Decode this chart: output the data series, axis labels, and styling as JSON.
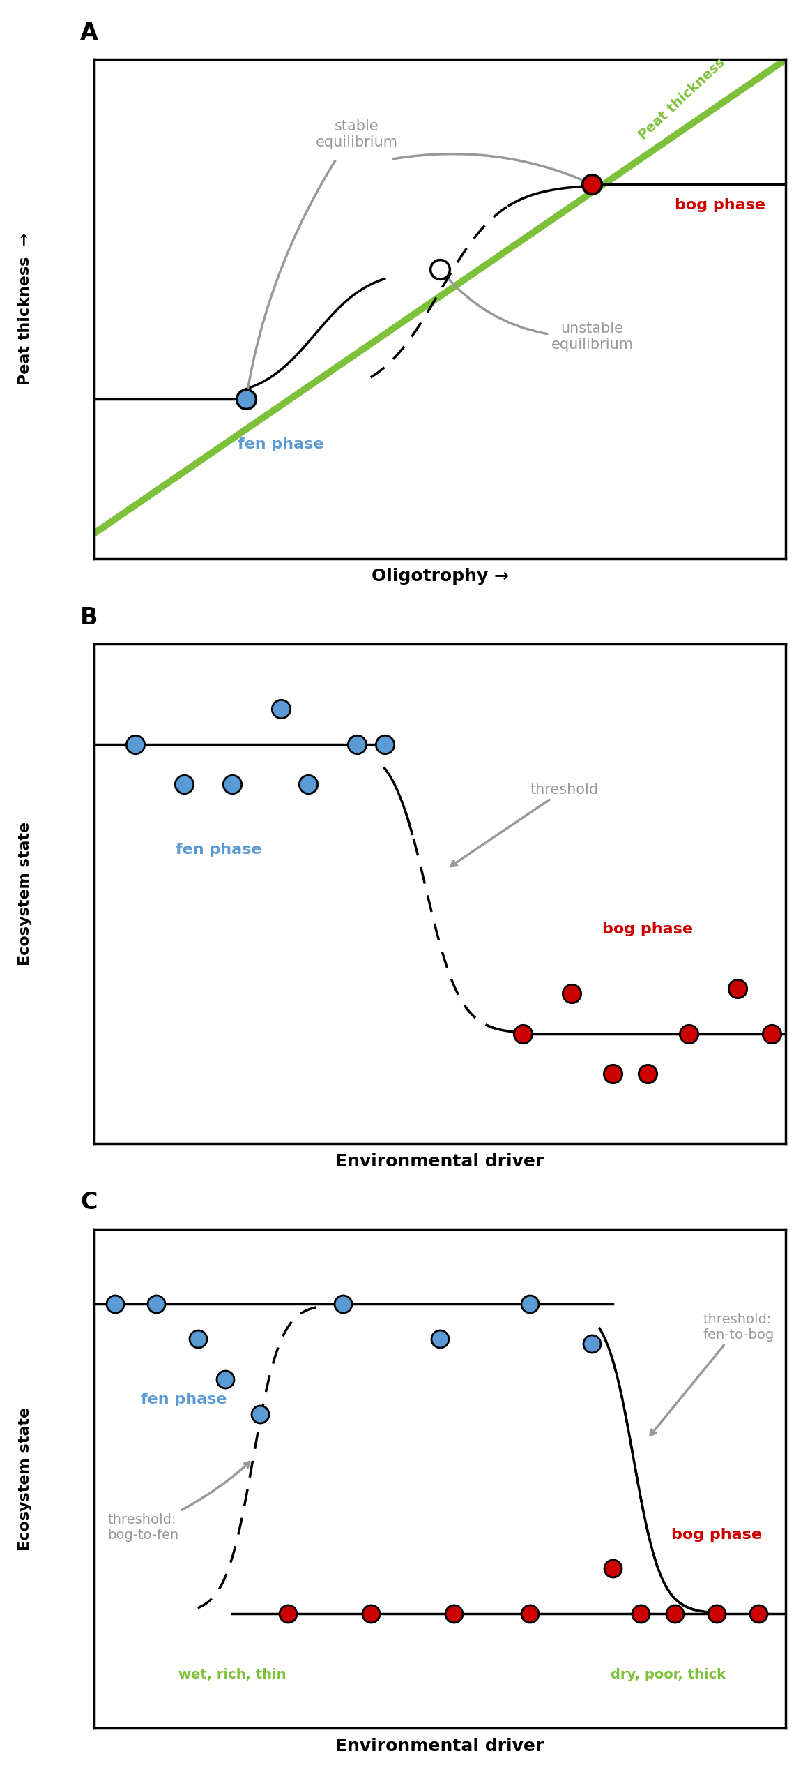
{
  "panel_A": {
    "label": "A",
    "xlabel": "Oligotrophy →",
    "ylabel": "Peat thickness  →",
    "green_line_label": "Peat thickness",
    "fen_phase_label": "fen phase",
    "bog_phase_label": "bog phase",
    "stable_eq_label": "stable\nequilibrium",
    "unstable_eq_label": "unstable\nequilibrium",
    "fen_color": "#5B9BD5",
    "bog_color": "#CC0000",
    "green_color": "#7DC13A",
    "arrow_color": "#999999",
    "text_color": "#999999"
  },
  "panel_B": {
    "label": "B",
    "xlabel": "Environmental driver",
    "ylabel": "Ecosystem state",
    "fen_phase_label": "fen phase",
    "bog_phase_label": "bog phase",
    "threshold_label": "threshold",
    "fen_color": "#5B9BD5",
    "bog_color": "#CC0000",
    "arrow_color": "#999999",
    "text_color": "#999999"
  },
  "panel_C": {
    "label": "C",
    "xlabel": "Environmental driver",
    "ylabel": "Ecosystem state",
    "fen_phase_label": "fen phase",
    "bog_phase_label": "bog phase",
    "threshold_ftb_label": "threshold:\nfen-to-bog",
    "threshold_btf_label": "threshold:\nbog-to-fen",
    "wet_label": "wet, rich, thin",
    "dry_label": "dry, poor, thick",
    "fen_color": "#5B9BD5",
    "bog_color": "#CC0000",
    "green_color": "#7DC13A",
    "arrow_color": "#999999",
    "text_color": "#999999"
  },
  "background_color": "#FFFFFF",
  "border_color": "#000000",
  "figsize": [
    11.62,
    25.5
  ],
  "dpi": 100
}
